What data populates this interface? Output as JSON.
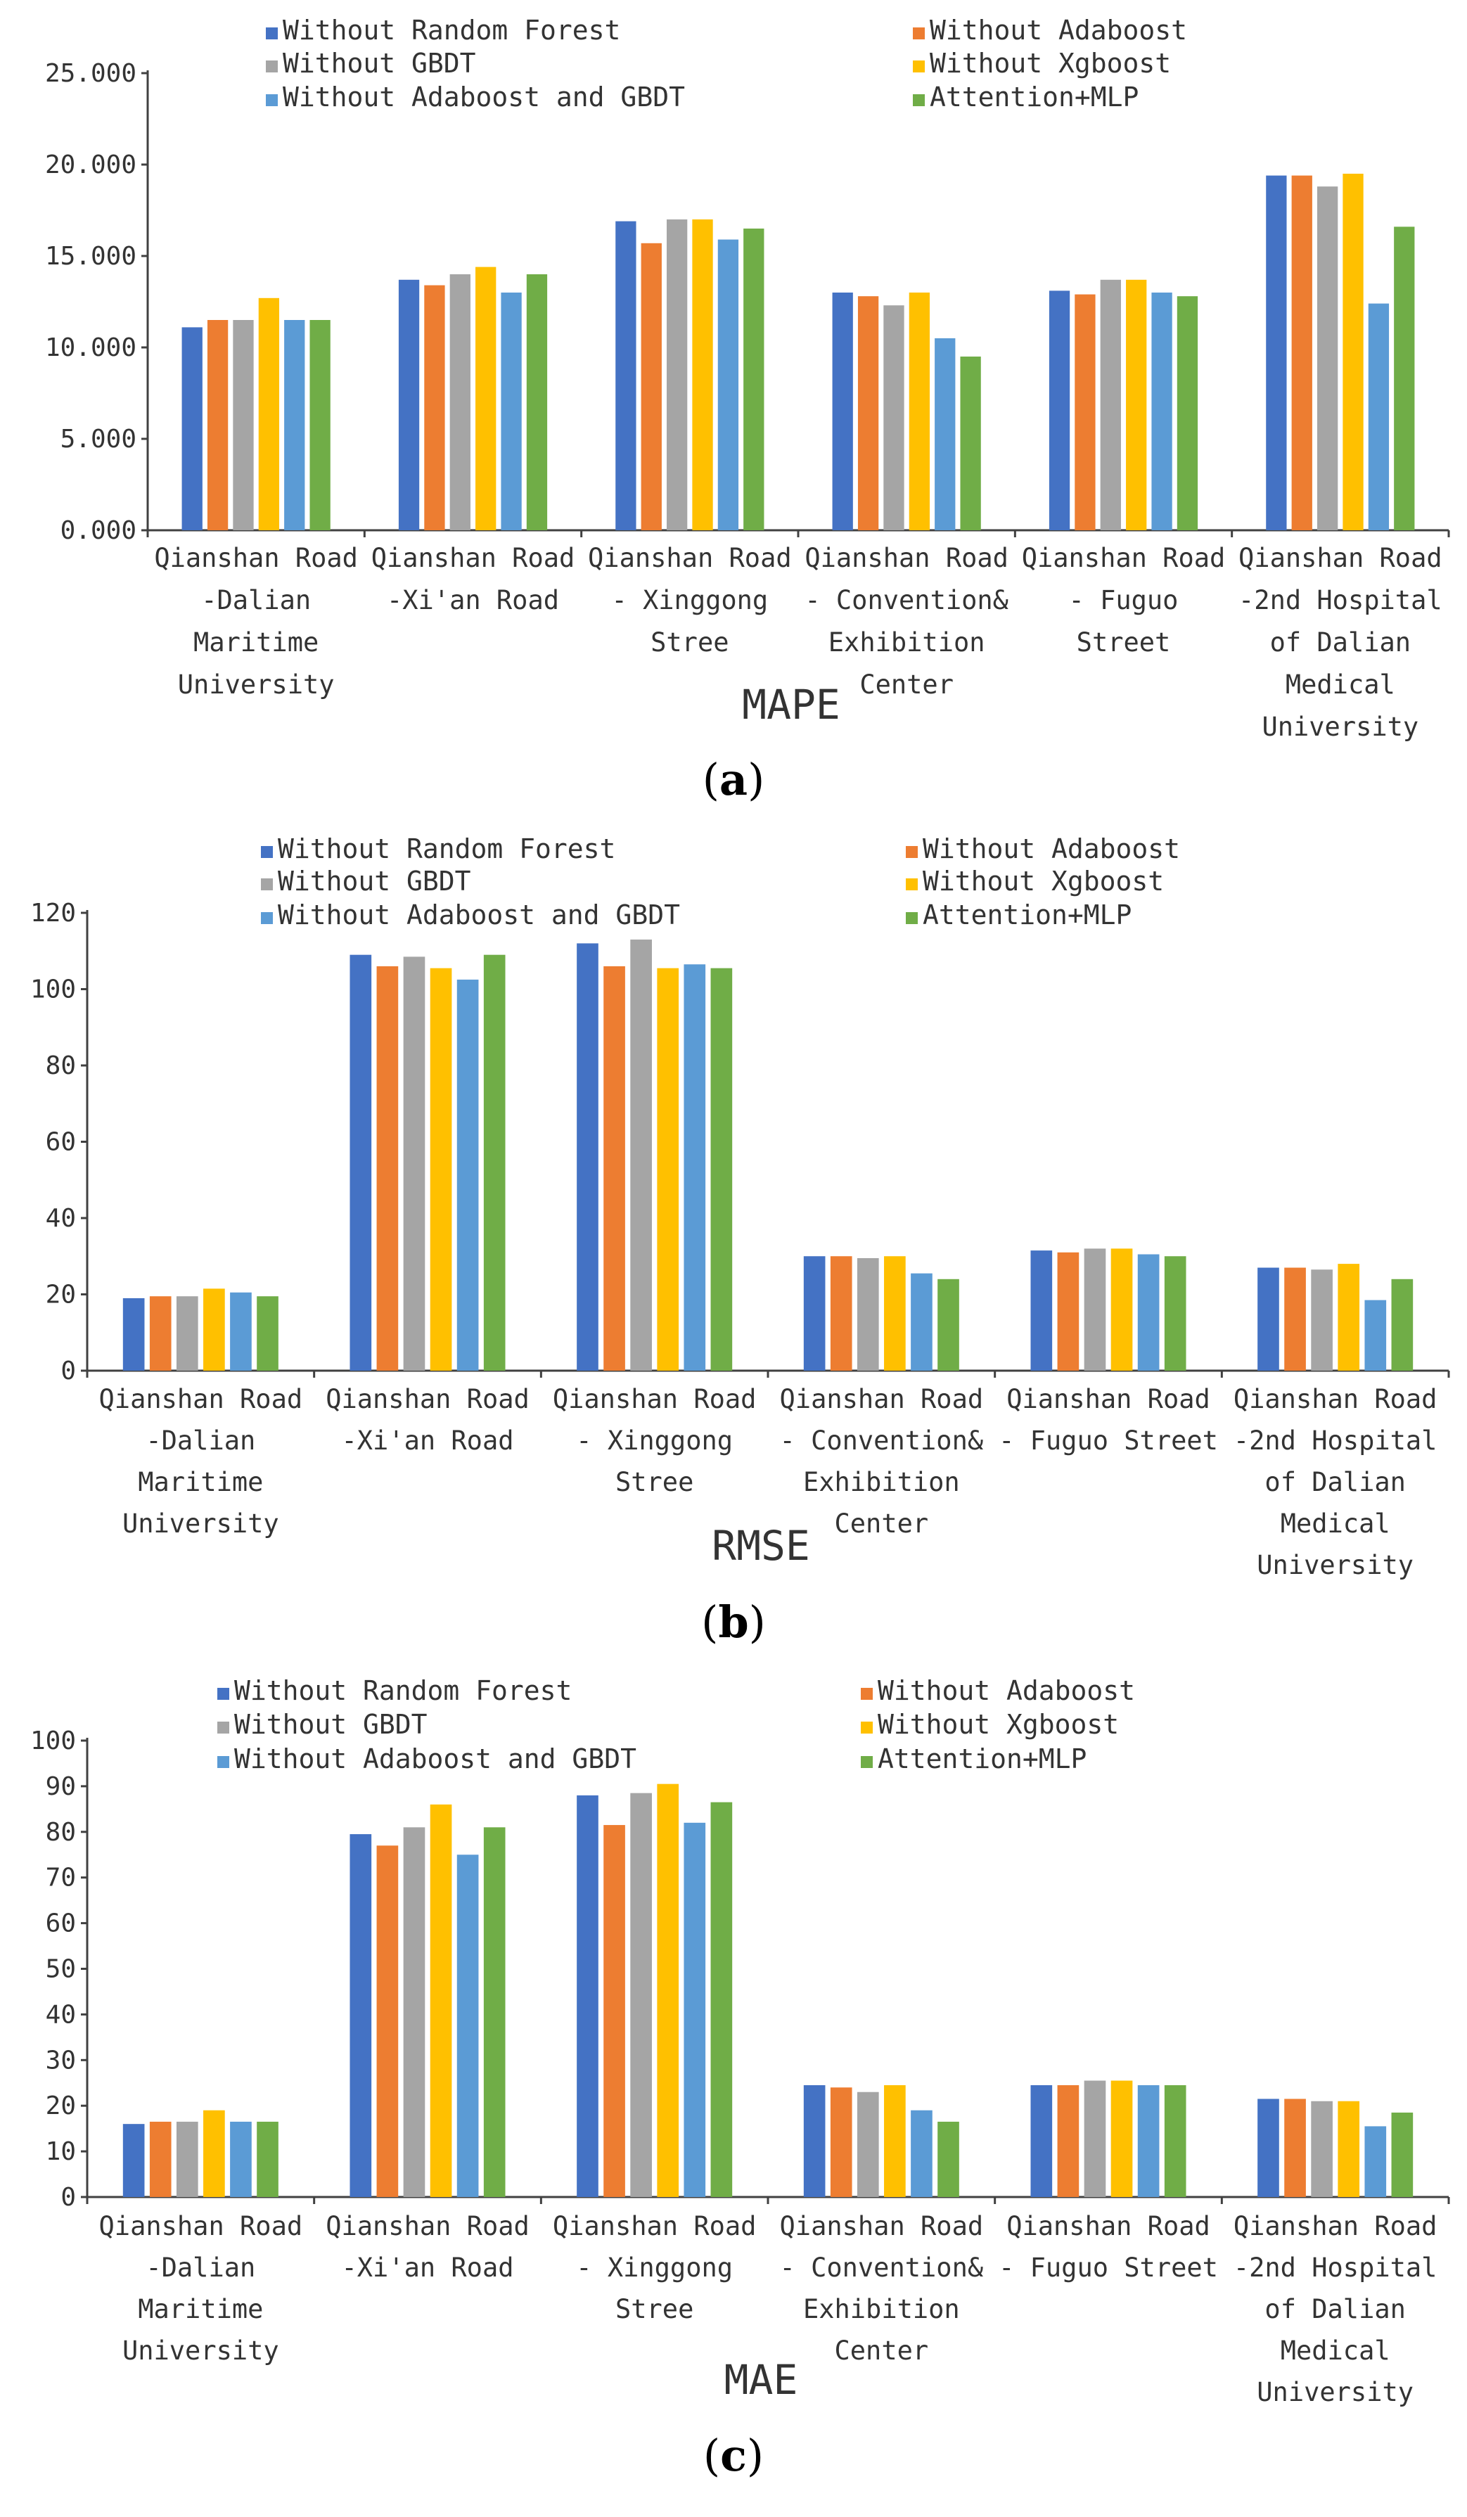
{
  "series_names": [
    "Without Random Forest",
    "Without Adaboost",
    "Without GBDT",
    "Without Xgboost",
    "Without Adaboost and GBDT",
    "Attention+MLP"
  ],
  "colors": [
    "#4472C4",
    "#ED7D31",
    "#A5A5A5",
    "#FFC000",
    "#5B9BD5",
    "#70AD47"
  ],
  "chart_data": [
    {
      "type": "bar",
      "panel_label": "(a)",
      "title": "MAPE",
      "categories": [
        [
          "Qianshan Road",
          "-Dalian",
          "Maritime",
          "University"
        ],
        [
          "Qianshan Road",
          "-Xi'an Road"
        ],
        [
          "Qianshan Road",
          "- Xinggong",
          "Stree"
        ],
        [
          "Qianshan Road",
          "- Convention&",
          "Exhibition",
          "Center"
        ],
        [
          "Qianshan Road",
          "- Fuguo",
          "Street"
        ],
        [
          "Qianshan Road",
          "-2nd Hospital",
          "of Dalian",
          "Medical",
          "University"
        ]
      ],
      "series": [
        {
          "name": "Without Random Forest",
          "values": [
            11.1,
            13.7,
            16.9,
            13.0,
            13.1,
            19.4
          ]
        },
        {
          "name": "Without Adaboost",
          "values": [
            11.5,
            13.4,
            15.7,
            12.8,
            12.9,
            19.4
          ]
        },
        {
          "name": "Without GBDT",
          "values": [
            11.5,
            14.0,
            17.0,
            12.3,
            13.7,
            18.8
          ]
        },
        {
          "name": "Without Xgboost",
          "values": [
            12.7,
            14.4,
            17.0,
            13.0,
            13.7,
            19.5
          ]
        },
        {
          "name": "Without Adaboost and GBDT",
          "values": [
            11.5,
            13.0,
            15.9,
            10.5,
            13.0,
            12.4
          ]
        },
        {
          "name": "Attention+MLP",
          "values": [
            11.5,
            14.0,
            16.5,
            9.5,
            12.8,
            16.6
          ]
        }
      ],
      "yticks": [
        "0.000",
        "5.000",
        "10.000",
        "15.000",
        "20.000",
        "25.000"
      ],
      "ylim": [
        0,
        25
      ],
      "grid": false,
      "legend": "top, three rows of two"
    },
    {
      "type": "bar",
      "panel_label": "(b)",
      "title": "RMSE",
      "categories": [
        [
          "Qianshan Road",
          "-Dalian",
          "Maritime",
          "University"
        ],
        [
          "Qianshan Road",
          "-Xi'an Road"
        ],
        [
          "Qianshan Road",
          "- Xinggong",
          "Stree"
        ],
        [
          "Qianshan Road",
          "- Convention&",
          "Exhibition",
          "Center"
        ],
        [
          "Qianshan Road",
          "- Fuguo Street"
        ],
        [
          "Qianshan Road",
          "-2nd Hospital",
          "of Dalian",
          "Medical",
          "University"
        ]
      ],
      "series": [
        {
          "name": "Without Random Forest",
          "values": [
            19,
            109,
            112,
            30,
            31.5,
            27
          ]
        },
        {
          "name": "Without Adaboost",
          "values": [
            19.5,
            106,
            106,
            30,
            31,
            27
          ]
        },
        {
          "name": "Without GBDT",
          "values": [
            19.5,
            108.5,
            113,
            29.5,
            32,
            26.5
          ]
        },
        {
          "name": "Without Xgboost",
          "values": [
            21.5,
            105.5,
            105.5,
            30,
            32,
            28
          ]
        },
        {
          "name": "Without Adaboost and GBDT",
          "values": [
            20.5,
            102.5,
            106.5,
            25.5,
            30.5,
            18.5
          ]
        },
        {
          "name": "Attention+MLP",
          "values": [
            19.5,
            109,
            105.5,
            24,
            30,
            24
          ]
        }
      ],
      "yticks": [
        "0",
        "20",
        "40",
        "60",
        "80",
        "100",
        "120"
      ],
      "ylim": [
        0,
        120
      ],
      "grid": false,
      "legend": "top, three rows of two"
    },
    {
      "type": "bar",
      "panel_label": "(c)",
      "title": "MAE",
      "categories": [
        [
          "Qianshan Road",
          "-Dalian",
          "Maritime",
          "University"
        ],
        [
          "Qianshan Road",
          "-Xi'an Road"
        ],
        [
          "Qianshan Road",
          "- Xinggong",
          "Stree"
        ],
        [
          "Qianshan Road",
          "- Convention&",
          "Exhibition",
          "Center"
        ],
        [
          "Qianshan Road",
          "- Fuguo Street"
        ],
        [
          "Qianshan Road",
          "-2nd Hospital",
          "of Dalian",
          "Medical",
          "University"
        ]
      ],
      "series": [
        {
          "name": "Without Random Forest",
          "values": [
            16,
            79.5,
            88,
            24.5,
            24.5,
            21.5
          ]
        },
        {
          "name": "Without Adaboost",
          "values": [
            16.5,
            77,
            81.5,
            24,
            24.5,
            21.5
          ]
        },
        {
          "name": "Without GBDT",
          "values": [
            16.5,
            81,
            88.5,
            23,
            25.5,
            21
          ]
        },
        {
          "name": "Without Xgboost",
          "values": [
            19,
            86,
            90.5,
            24.5,
            25.5,
            21
          ]
        },
        {
          "name": "Without Adaboost and GBDT",
          "values": [
            16.5,
            75,
            82,
            19,
            24.5,
            15.5
          ]
        },
        {
          "name": "Attention+MLP",
          "values": [
            16.5,
            81,
            86.5,
            16.5,
            24.5,
            18.5
          ]
        }
      ],
      "yticks": [
        "0",
        "10",
        "20",
        "30",
        "40",
        "50",
        "60",
        "70",
        "80",
        "90",
        "100"
      ],
      "ylim": [
        0,
        100
      ],
      "grid": false,
      "legend": "top, three rows of two"
    }
  ]
}
